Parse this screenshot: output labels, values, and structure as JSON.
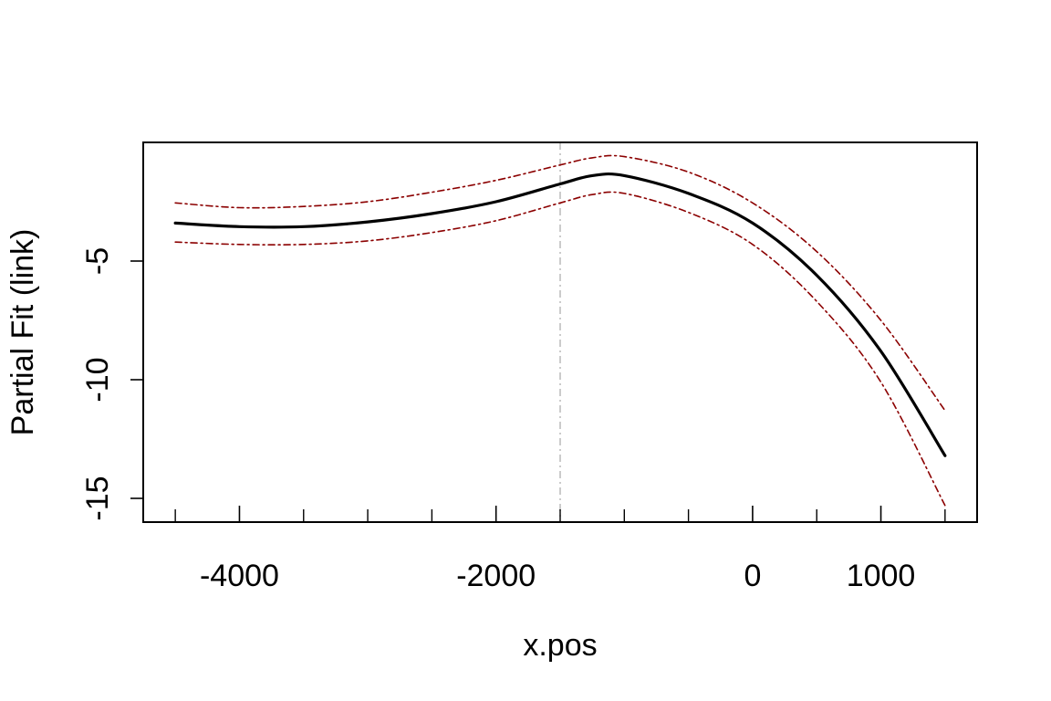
{
  "chart_data": {
    "type": "line",
    "title": "",
    "xlabel": "x.pos",
    "ylabel": "Partial Fit (link)",
    "xlim": [
      -4750,
      1750
    ],
    "ylim": [
      -16,
      0
    ],
    "x_ticks_major": [
      -4000,
      -2000,
      0,
      1000
    ],
    "x_tick_labels": [
      "-4000",
      "-2000",
      "0",
      "1000"
    ],
    "x_ticks_minor": [
      -4500,
      -3500,
      -3000,
      -2500,
      -1500,
      -1000,
      -500,
      500,
      1500
    ],
    "y_ticks": [
      -5,
      -10,
      -15
    ],
    "y_tick_labels": [
      "-5",
      "-10",
      "-15"
    ],
    "grid": false,
    "vline": {
      "x": -1500,
      "color": "#bebebe"
    },
    "series": [
      {
        "role": "fit",
        "color": "#000000",
        "x": [
          -4500,
          -4000,
          -3500,
          -3000,
          -2500,
          -2000,
          -1500,
          -1250,
          -1000,
          -500,
          0,
          500,
          1000,
          1500
        ],
        "y": [
          -3.4,
          -3.55,
          -3.55,
          -3.35,
          -3.0,
          -2.5,
          -1.75,
          -1.4,
          -1.4,
          -2.15,
          -3.4,
          -5.6,
          -8.8,
          -13.2
        ]
      },
      {
        "role": "upper",
        "color": "#8b0000",
        "x": [
          -4500,
          -4000,
          -3500,
          -3000,
          -2500,
          -2000,
          -1500,
          -1250,
          -1000,
          -500,
          0,
          500,
          1000,
          1500
        ],
        "y": [
          -2.55,
          -2.75,
          -2.7,
          -2.5,
          -2.1,
          -1.6,
          -0.95,
          -0.65,
          -0.6,
          -1.25,
          -2.55,
          -4.6,
          -7.5,
          -11.3
        ]
      },
      {
        "role": "lower",
        "color": "#8b0000",
        "x": [
          -4500,
          -4000,
          -3500,
          -3000,
          -2500,
          -2000,
          -1500,
          -1250,
          -1000,
          -500,
          0,
          500,
          1000,
          1500
        ],
        "y": [
          -4.2,
          -4.3,
          -4.3,
          -4.15,
          -3.8,
          -3.3,
          -2.55,
          -2.2,
          -2.15,
          -2.95,
          -4.3,
          -6.7,
          -10.1,
          -15.3
        ]
      }
    ]
  }
}
